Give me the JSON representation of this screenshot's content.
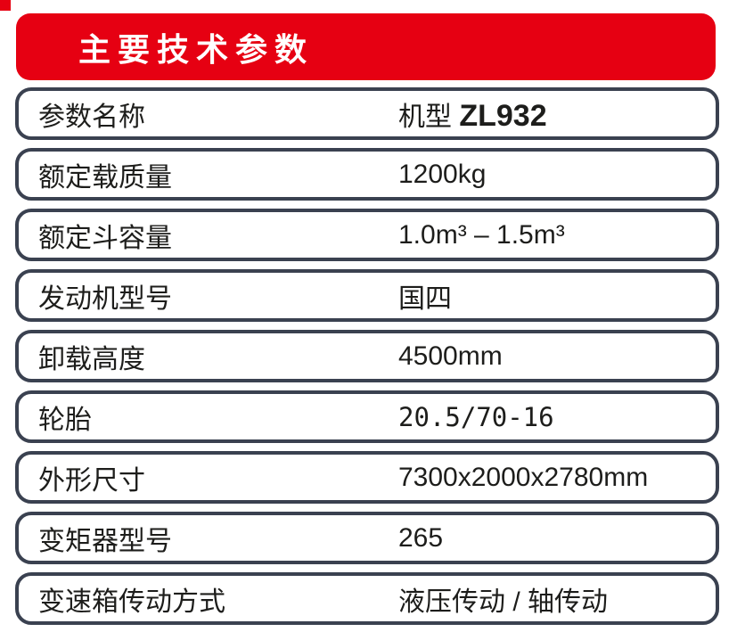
{
  "colors": {
    "brand_red": "#e60012",
    "row_border": "#3a4150",
    "text": "#1d1d1b",
    "title_text": "#ffffff"
  },
  "header": {
    "title": "主要技术参数"
  },
  "table": {
    "rows": [
      {
        "label": "参数名称",
        "value": "机型 ",
        "model": "ZL932"
      },
      {
        "label": "额定载质量",
        "value": "1200kg"
      },
      {
        "label": "额定斗容量",
        "value": "1.0m³ – 1.5m³"
      },
      {
        "label": "发动机型号",
        "value": "国四"
      },
      {
        "label": "卸载高度",
        "value": "4500mm"
      },
      {
        "label": "轮胎",
        "value": "20.5/70-16"
      },
      {
        "label": "外形尺寸",
        "value": "7300x2000x2780mm"
      },
      {
        "label": "变矩器型号",
        "value": "265"
      },
      {
        "label": "变速箱传动方式",
        "value": "液压传动 / 轴传动"
      }
    ]
  }
}
